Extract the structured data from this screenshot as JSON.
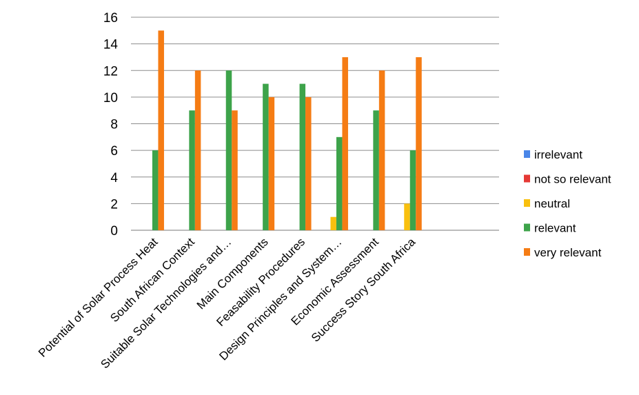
{
  "chart_data": {
    "type": "bar",
    "categories": [
      "Potential of Solar Process Heat",
      "South African Context",
      "Suitable Solar Technologies and…",
      "Main Components",
      "Feasability Procedures",
      "Design Principles and System…",
      "Economic Assessment",
      "Success Story South Africa"
    ],
    "series": [
      {
        "name": "irrelevant",
        "color": "#4a86e8",
        "values": [
          0,
          0,
          0,
          0,
          0,
          0,
          0,
          0
        ]
      },
      {
        "name": "not so relevant",
        "color": "#e53935",
        "values": [
          0,
          0,
          0,
          0,
          0,
          0,
          0,
          0
        ]
      },
      {
        "name": "neutral",
        "color": "#f9c00f",
        "values": [
          0,
          0,
          0,
          0,
          0,
          1,
          0,
          2
        ]
      },
      {
        "name": "relevant",
        "color": "#3da34a",
        "values": [
          6,
          9,
          12,
          11,
          11,
          7,
          9,
          6
        ]
      },
      {
        "name": "very relevant",
        "color": "#f57c14",
        "values": [
          15,
          12,
          9,
          10,
          10,
          13,
          12,
          13
        ]
      }
    ],
    "yticks": [
      "0",
      "2",
      "4",
      "6",
      "8",
      "10",
      "12",
      "14",
      "16"
    ],
    "ylim": [
      0,
      16
    ],
    "grid": true,
    "legend": "right"
  }
}
